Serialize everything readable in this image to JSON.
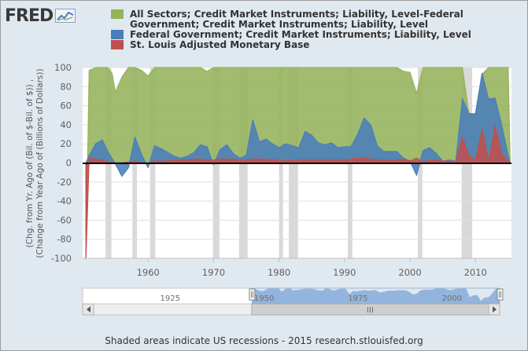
{
  "header": {
    "logo_text": "FRED",
    "logo_icon": "fred-chart-icon"
  },
  "footer": {
    "note": "Shaded areas indicate US recessions - 2015 research.stlouisfed.org"
  },
  "colors": {
    "background": "#e1e9f0",
    "plot_background": "#ffffff",
    "recession": "#d9d9d9",
    "grid": "#dfdfdf",
    "navigator_band": "#6f9bd0"
  },
  "chart_data": {
    "type": "area",
    "title": "",
    "xlabel": "",
    "ylabel_line1": "(Chg. from Yr. Ago of (Bil. of $-Bil. of $)) ,",
    "ylabel_line2": "(Change from Year Ago of (Billions of Dollars))",
    "ylim": [
      -100,
      100
    ],
    "xlim": [
      1950,
      2015.5
    ],
    "y_ticks": [
      "-100",
      "-80",
      "-60",
      "-40",
      "-20",
      "0",
      "20",
      "40",
      "60",
      "80",
      "100"
    ],
    "x_ticks": [
      1960,
      1970,
      1980,
      1990,
      2000,
      2010
    ],
    "x_tick_labels": [
      "1960",
      "1970",
      "1980",
      "1990",
      "2000",
      "2010"
    ],
    "legend_position": "top",
    "series": [
      {
        "name": "All Sectors; Credit Market Instruments; Liability, Level-Federal Government; Credit Market Instruments; Liability, Level",
        "color": "#94b35a",
        "x": [
          1950.5,
          1951,
          1952,
          1953,
          1953.8,
          1954.5,
          1955,
          1956,
          1957,
          1958,
          1959,
          1960,
          1961,
          1962,
          1963,
          1964,
          1965,
          1966,
          1967,
          1968,
          1969,
          1970,
          1971,
          1972,
          1973,
          1974,
          1975,
          1976,
          1977,
          1978,
          1979,
          1980,
          1981,
          1982,
          1983,
          1984,
          1985,
          1986,
          1987,
          1988,
          1989,
          1990,
          1991,
          1992,
          1993,
          1994,
          1995,
          1996,
          1997,
          1998,
          1999,
          2000,
          2001,
          2002,
          2003,
          2004,
          2005,
          2006,
          2007,
          2008,
          2009,
          2010,
          2011,
          2012,
          2013,
          2014,
          2015,
          2015.3
        ],
        "values": [
          -100,
          97,
          100,
          100,
          100,
          94,
          74,
          90,
          100,
          100,
          97,
          91,
          100,
          100,
          100,
          100,
          100,
          100,
          100,
          100,
          96,
          100,
          100,
          100,
          100,
          100,
          100,
          100,
          100,
          100,
          100,
          100,
          100,
          100,
          100,
          100,
          100,
          100,
          100,
          100,
          100,
          100,
          100,
          100,
          100,
          100,
          100,
          100,
          100,
          100,
          96,
          95,
          73,
          100,
          100,
          100,
          100,
          100,
          100,
          100,
          51,
          52,
          93,
          100,
          100,
          100,
          100,
          0
        ]
      },
      {
        "name": "Federal Government; Credit Market Instruments; Liability, Level",
        "color": "#4a7ebb",
        "x": [
          1950.5,
          1951,
          1952,
          1953,
          1954,
          1955,
          1956,
          1957,
          1958,
          1959,
          1960,
          1961,
          1962,
          1963,
          1964,
          1965,
          1966,
          1967,
          1968,
          1969,
          1970,
          1971,
          1972,
          1973,
          1974,
          1975,
          1976,
          1977,
          1978,
          1979,
          1980,
          1981,
          1982,
          1983,
          1984,
          1985,
          1986,
          1987,
          1988,
          1989,
          1990,
          1991,
          1992,
          1993,
          1994,
          1995,
          1996,
          1997,
          1998,
          1999,
          2000,
          2001,
          2002,
          2003,
          2004,
          2005,
          2006,
          2007,
          2008,
          2009,
          2010,
          2011,
          2012,
          2013,
          2014,
          2015,
          2015.3
        ],
        "values": [
          0,
          8,
          20,
          24,
          10,
          -1,
          -14,
          -5,
          27,
          9,
          -5,
          18,
          15,
          11,
          7,
          5,
          7,
          11,
          19,
          17,
          -2,
          14,
          19,
          10,
          5,
          8,
          45,
          22,
          25,
          20,
          16,
          20,
          18,
          16,
          33,
          29,
          21,
          19,
          21,
          16,
          17,
          17,
          30,
          47,
          40,
          18,
          12,
          12,
          12,
          5,
          2,
          -13,
          13,
          16,
          10,
          2,
          3,
          2,
          67,
          52,
          51,
          94,
          67,
          68,
          40,
          8,
          0
        ]
      },
      {
        "name": "St. Louis Adjusted Monetary Base",
        "color": "#c0504d",
        "x": [
          1950.5,
          1951,
          1952,
          1953,
          1954,
          1955,
          1956,
          1957,
          1958,
          1959,
          1960,
          1961,
          1962,
          1963,
          1964,
          1965,
          1966,
          1967,
          1968,
          1969,
          1970,
          1971,
          1972,
          1973,
          1974,
          1975,
          1976,
          1977,
          1978,
          1979,
          1980,
          1981,
          1982,
          1983,
          1984,
          1985,
          1986,
          1987,
          1988,
          1989,
          1990,
          1991,
          1992,
          1993,
          1994,
          1995,
          1996,
          1997,
          1998,
          1999,
          2000,
          2001,
          2002,
          2003,
          2004,
          2005,
          2006,
          2007,
          2008,
          2009,
          2010,
          2011,
          2012,
          2013,
          2014,
          2015,
          2015.3
        ],
        "values": [
          -100,
          5,
          4,
          3,
          1,
          0,
          0,
          1,
          2,
          0,
          0,
          2,
          2,
          2,
          3,
          3,
          3,
          4,
          4,
          3,
          3,
          4,
          4,
          4,
          3,
          3,
          4,
          4,
          4,
          3,
          3,
          2,
          3,
          3,
          3,
          3,
          3,
          3,
          3,
          3,
          3,
          4,
          5,
          5,
          4,
          3,
          3,
          3,
          3,
          4,
          2,
          5,
          1,
          3,
          3,
          2,
          2,
          1,
          27,
          8,
          2,
          35,
          2,
          39,
          10,
          2,
          0
        ]
      }
    ],
    "recessions": [
      [
        1953.5,
        1954.4
      ],
      [
        1957.6,
        1958.3
      ],
      [
        1960.3,
        1961.1
      ],
      [
        1969.9,
        1970.9
      ],
      [
        1973.9,
        1975.2
      ],
      [
        1980.0,
        1980.6
      ],
      [
        1981.5,
        1982.9
      ],
      [
        1990.5,
        1991.2
      ],
      [
        2001.2,
        2001.9
      ],
      [
        2007.9,
        2009.5
      ]
    ],
    "navigator": {
      "x_labels": [
        "1925",
        "1950",
        "1975",
        "2000"
      ],
      "x_label_years": [
        1925,
        1950,
        1975,
        2000
      ],
      "range_years": [
        1905,
        2016
      ],
      "selected_years": [
        1950,
        2016
      ]
    }
  }
}
